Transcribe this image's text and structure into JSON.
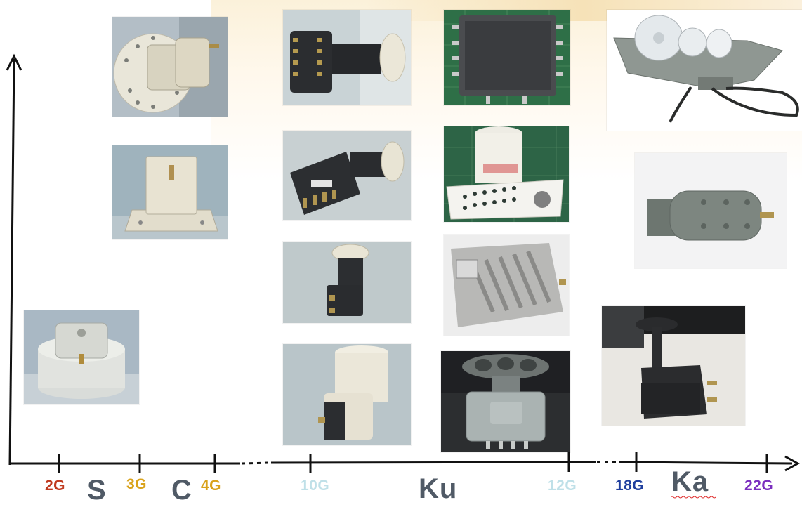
{
  "axis": {
    "ticks": [
      {
        "label": "2G",
        "color": "#c0391e"
      },
      {
        "label": "3G",
        "color": "#d9a21a"
      },
      {
        "label": "4G",
        "color": "#d9a21a"
      },
      {
        "label": "10G",
        "color": "#bfe0e8"
      },
      {
        "label": "12G",
        "color": "#bfe0e8"
      },
      {
        "label": "18G",
        "color": "#1f3f9e"
      },
      {
        "label": "22G",
        "color": "#7b2fbf"
      }
    ],
    "bands": [
      {
        "label": "S"
      },
      {
        "label": "C"
      },
      {
        "label": "Ku"
      },
      {
        "label": "Ka"
      }
    ]
  },
  "photos": [
    {
      "band": "S",
      "subject": "S-band LNB with disc flange"
    },
    {
      "band": "C",
      "subject": "C-band waveguide LNB with round flange"
    },
    {
      "band": "C",
      "subject": "C-band LNB block with rectangular flange"
    },
    {
      "band": "Ku",
      "subject": "Ku-band octo LNB"
    },
    {
      "band": "Ku",
      "subject": "Ku-band quad LNB"
    },
    {
      "band": "Ku",
      "subject": "Ku-band single LNB"
    },
    {
      "band": "Ku",
      "subject": "Ku-band white single LNB"
    },
    {
      "band": "Ku",
      "subject": "Ku-band multiswitch board"
    },
    {
      "band": "Ku",
      "subject": "Ku-band LNB with white heatsink"
    },
    {
      "band": "Ku",
      "subject": "Ku-band finned aluminium block"
    },
    {
      "band": "Ku",
      "subject": "Ku-band triple feed block"
    },
    {
      "band": "Ka",
      "subject": "Ka-band multi-feed LNB with cable"
    },
    {
      "band": "Ka",
      "subject": "Ka-band grey LNB"
    },
    {
      "band": "Ka",
      "subject": "Ka-band black LNB with horn"
    }
  ],
  "colors": {
    "axis": "#111111",
    "band_label": "#505a66",
    "accent_glow": "#f6e2b8"
  }
}
